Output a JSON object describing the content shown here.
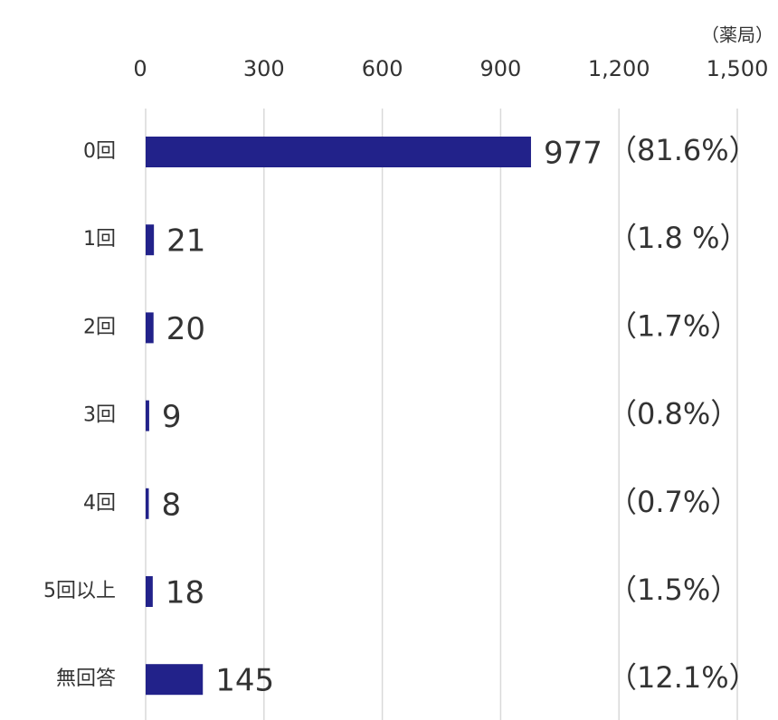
{
  "chart_data": {
    "type": "hbar",
    "unit_label": "（薬局）",
    "categories": [
      "0回",
      "1回",
      "2回",
      "3回",
      "4回",
      "5回以上",
      "無回答"
    ],
    "values": [
      977,
      21,
      20,
      9,
      8,
      18,
      145
    ],
    "percent_labels": [
      "（81.6%）",
      "（1.8 %）",
      "（1.7%）",
      "（0.8%）",
      "（0.7%）",
      "（1.5%）",
      "（12.1%）"
    ],
    "color": "#22228a",
    "xlim": [
      0,
      1500
    ],
    "xticks": [
      0,
      300,
      600,
      900,
      {
        "value": 1200,
        "label": "1,200"
      },
      {
        "value": 1500,
        "label": "1,500"
      }
    ],
    "grid": true
  }
}
